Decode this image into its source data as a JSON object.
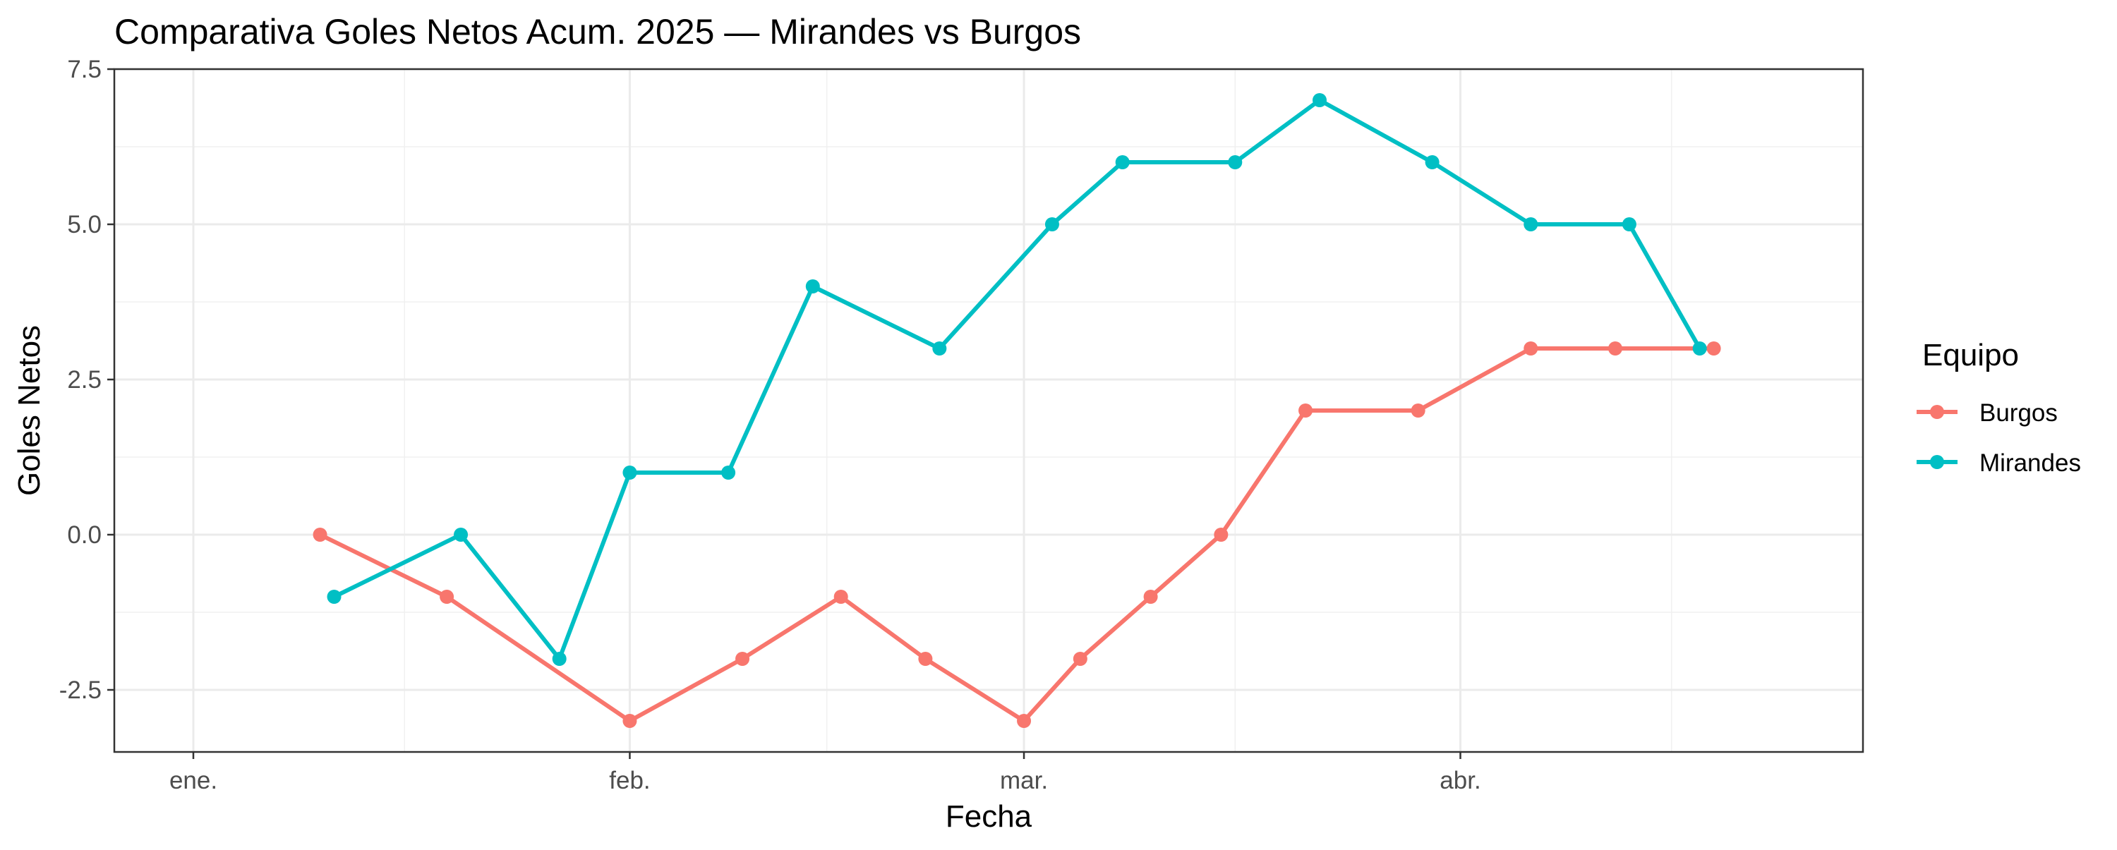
{
  "chart_data": {
    "type": "line",
    "title": "Comparativa Goles Netos Acum. 2025 — Mirandes vs Burgos",
    "xlabel": "Fecha",
    "ylabel": "Goles Netos",
    "x_ticks": [
      {
        "label": "ene.",
        "date": "2025-01-01"
      },
      {
        "label": "feb.",
        "date": "2025-02-01"
      },
      {
        "label": "mar.",
        "date": "2025-03-01"
      },
      {
        "label": "abr.",
        "date": "2025-04-01"
      }
    ],
    "y_ticks": [
      "-2.5",
      "0.0",
      "2.5",
      "5.0",
      "7.5"
    ],
    "ylim": [
      -3.5,
      7.5
    ],
    "grid": true,
    "legend": {
      "title": "Equipo",
      "position": "right"
    },
    "series": [
      {
        "name": "Burgos",
        "color": "#F8766D",
        "x": [
          "2025-01-10",
          "2025-01-19",
          "2025-02-01",
          "2025-02-09",
          "2025-02-16",
          "2025-02-22",
          "2025-03-01",
          "2025-03-05",
          "2025-03-10",
          "2025-03-15",
          "2025-03-21",
          "2025-03-29",
          "2025-04-06",
          "2025-04-12",
          "2025-04-19"
        ],
        "values": [
          0,
          -1,
          -3,
          -2,
          -1,
          -2,
          -3,
          -2,
          -1,
          0,
          2,
          2,
          3,
          3,
          3
        ]
      },
      {
        "name": "Mirandes",
        "color": "#00BFC4",
        "x": [
          "2025-01-11",
          "2025-01-20",
          "2025-01-27",
          "2025-02-01",
          "2025-02-08",
          "2025-02-14",
          "2025-02-23",
          "2025-03-03",
          "2025-03-08",
          "2025-03-16",
          "2025-03-22",
          "2025-03-30",
          "2025-04-06",
          "2025-04-13",
          "2025-04-18"
        ],
        "values": [
          -1,
          0,
          -2,
          1,
          1,
          4,
          3,
          5,
          6,
          6,
          7,
          6,
          5,
          5,
          3
        ]
      }
    ]
  }
}
